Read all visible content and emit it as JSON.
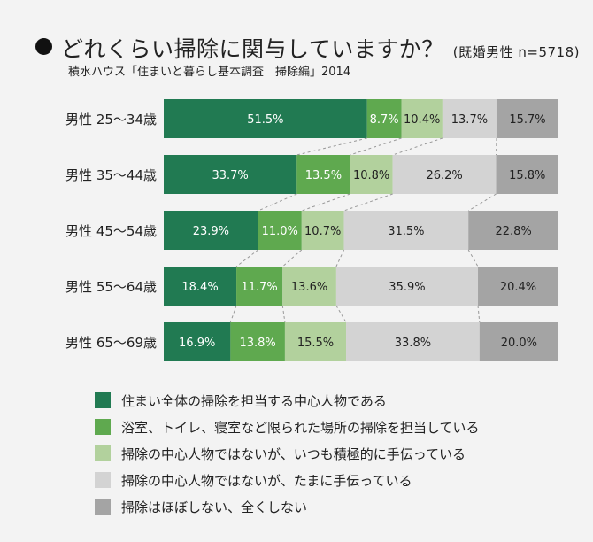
{
  "chart_data": {
    "type": "bar",
    "orientation": "horizontal",
    "stacked": true,
    "title": "どれくらい掃除に関与していますか？",
    "subtitle": "(既婚男性 n=5718)",
    "source": "積水ハウス「住まいと暮らし基本調査　掃除編」2014",
    "categories": [
      "男性 25〜34歳",
      "男性 35〜44歳",
      "男性 45〜54歳",
      "男性 55〜64歳",
      "男性 65〜69歳"
    ],
    "series": [
      {
        "name": "住まい全体の掃除を担当する中心人物である",
        "color": "#217a52",
        "label_color": "#ffffff",
        "values": [
          51.5,
          33.7,
          23.9,
          18.4,
          16.9
        ]
      },
      {
        "name": "浴室、トイレ、寝室など限られた場所の掃除を担当している",
        "color": "#5fa94f",
        "label_color": "#ffffff",
        "values": [
          8.7,
          13.5,
          11.0,
          11.7,
          13.8
        ]
      },
      {
        "name": "掃除の中心人物ではないが、いつも積極的に手伝っている",
        "color": "#b2d19d",
        "label_color": "#222222",
        "values": [
          10.4,
          10.8,
          10.7,
          13.6,
          15.5
        ]
      },
      {
        "name": "掃除の中心人物ではないが、たまに手伝っている",
        "color": "#d3d3d3",
        "label_color": "#222222",
        "values": [
          13.7,
          26.2,
          31.5,
          35.9,
          33.8
        ]
      },
      {
        "name": "掃除はほぼしない、全くしない",
        "color": "#a4a4a4",
        "label_color": "#222222",
        "values": [
          15.7,
          15.8,
          22.8,
          20.4,
          20.0
        ]
      }
    ],
    "unit": "%",
    "xlim": [
      0,
      100
    ],
    "legend_position": "bottom-left",
    "connector_lines": "dashed"
  }
}
